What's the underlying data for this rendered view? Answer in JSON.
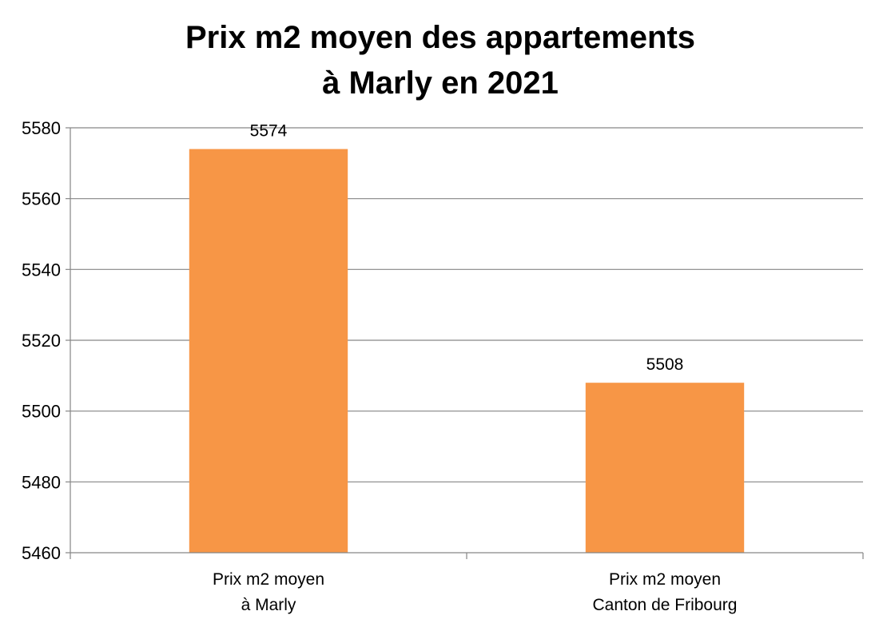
{
  "chart_data": {
    "type": "bar",
    "title_lines": [
      "Prix m2 moyen des appartements",
      "à Marly en 2021"
    ],
    "categories": [
      [
        "Prix m2 moyen",
        "à Marly"
      ],
      [
        "Prix m2 moyen",
        "Canton de Fribourg"
      ]
    ],
    "values": [
      5574,
      5508
    ],
    "data_labels": [
      "5574",
      "5508"
    ],
    "ylim": [
      5460,
      5580
    ],
    "yticks": [
      5460,
      5480,
      5500,
      5520,
      5540,
      5560,
      5580
    ],
    "ytick_labels": [
      "5460",
      "5480",
      "5500",
      "5520",
      "5540",
      "5560",
      "5580"
    ],
    "xlabel": "",
    "ylabel": "",
    "grid": true,
    "legend": "none",
    "colors": {
      "bar": "#F79646",
      "grid": "#868686",
      "axis": "#868686",
      "text": "#000000"
    }
  }
}
